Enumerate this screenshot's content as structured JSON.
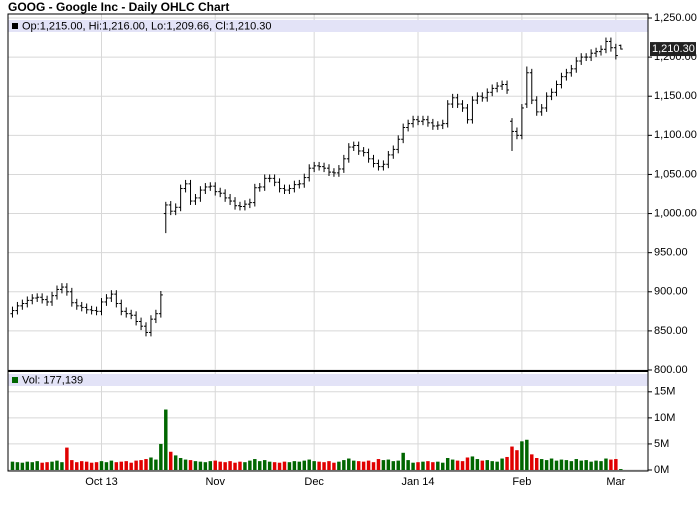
{
  "chart_data": {
    "type": "ohlc",
    "title": "GOOG - Google Inc - Daily OHLC Chart",
    "legend_text": "Op:1,215.00, Hi:1,216.00, Lo:1,209.66, Cl:1,210.30",
    "last_label": "1,210.30",
    "color": "#000000",
    "grid": true,
    "categories": [
      null,
      null,
      null,
      null,
      null,
      null,
      null,
      null,
      null,
      null,
      null,
      null,
      null,
      null,
      null,
      null,
      null,
      null,
      "Oct 13",
      null,
      null,
      null,
      null,
      null,
      null,
      null,
      null,
      null,
      null,
      null,
      null,
      null,
      null,
      null,
      null,
      null,
      null,
      null,
      null,
      null,
      null,
      "Nov",
      null,
      null,
      null,
      null,
      null,
      null,
      null,
      null,
      null,
      null,
      null,
      null,
      null,
      null,
      null,
      null,
      null,
      null,
      null,
      "Dec",
      null,
      null,
      null,
      null,
      null,
      null,
      null,
      null,
      null,
      null,
      null,
      null,
      null,
      null,
      null,
      null,
      null,
      null,
      null,
      null,
      "Jan 14",
      null,
      null,
      null,
      null,
      null,
      null,
      null,
      null,
      null,
      null,
      null,
      null,
      null,
      null,
      null,
      null,
      null,
      null,
      null,
      null,
      "Feb",
      null,
      null,
      null,
      null,
      null,
      null,
      null,
      null,
      null,
      null,
      null,
      null,
      null,
      null,
      null,
      null,
      null,
      null,
      "Mar",
      null
    ],
    "open": [
      872,
      876,
      882,
      885,
      889,
      892,
      893,
      890,
      887,
      895,
      903,
      906,
      900,
      886,
      882,
      880,
      877,
      876,
      875,
      887,
      892,
      897,
      885,
      875,
      872,
      870,
      862,
      856,
      848,
      865,
      872,
      1000,
      1011,
      1003,
      1008,
      1032,
      1038,
      1016,
      1020,
      1030,
      1034,
      1035,
      1028,
      1026,
      1020,
      1016,
      1010,
      1009,
      1012,
      1014,
      1033,
      1034,
      1045,
      1045,
      1040,
      1032,
      1030,
      1032,
      1037,
      1038,
      1046,
      1058,
      1061,
      1060,
      1058,
      1053,
      1052,
      1057,
      1070,
      1085,
      1087,
      1080,
      1078,
      1070,
      1064,
      1060,
      1063,
      1075,
      1082,
      1095,
      1110,
      1115,
      1120,
      1118,
      1120,
      1116,
      1112,
      1113,
      1115,
      1140,
      1148,
      1140,
      1135,
      1120,
      1145,
      1150,
      1148,
      1155,
      1160,
      1163,
      1165,
      1118,
      1105,
      1100,
      1140,
      1180,
      1145,
      1130,
      1135,
      1150,
      1155,
      1165,
      1175,
      1180,
      1185,
      1195,
      1200,
      1200,
      1205,
      1207,
      1210,
      1220,
      1212,
      1215
    ],
    "high": [
      881,
      887,
      890,
      894,
      897,
      898,
      898,
      895,
      900,
      908,
      911,
      911,
      905,
      891,
      887,
      885,
      882,
      881,
      892,
      897,
      902,
      902,
      890,
      880,
      877,
      875,
      867,
      861,
      870,
      877,
      901,
      1015,
      1016,
      1013,
      1037,
      1043,
      1043,
      1025,
      1035,
      1039,
      1040,
      1040,
      1033,
      1031,
      1025,
      1021,
      1015,
      1017,
      1019,
      1038,
      1039,
      1050,
      1050,
      1050,
      1045,
      1037,
      1037,
      1042,
      1043,
      1051,
      1063,
      1066,
      1066,
      1065,
      1063,
      1058,
      1062,
      1075,
      1090,
      1092,
      1092,
      1085,
      1083,
      1075,
      1069,
      1068,
      1080,
      1087,
      1100,
      1115,
      1120,
      1125,
      1125,
      1125,
      1125,
      1121,
      1118,
      1120,
      1145,
      1153,
      1153,
      1145,
      1140,
      1150,
      1155,
      1155,
      1160,
      1165,
      1168,
      1170,
      1170,
      1122,
      1110,
      1140,
      1188,
      1185,
      1150,
      1140,
      1155,
      1160,
      1170,
      1180,
      1185,
      1190,
      1200,
      1205,
      1205,
      1210,
      1212,
      1215,
      1225,
      1225,
      1217,
      1216
    ],
    "low": [
      867,
      871,
      877,
      880,
      884,
      887,
      885,
      882,
      882,
      890,
      898,
      895,
      881,
      877,
      875,
      872,
      871,
      870,
      870,
      882,
      887,
      880,
      870,
      867,
      865,
      857,
      851,
      843,
      843,
      860,
      867,
      975,
      998,
      998,
      1003,
      1027,
      1011,
      1011,
      1015,
      1025,
      1029,
      1023,
      1021,
      1015,
      1011,
      1005,
      1004,
      1004,
      1007,
      1009,
      1028,
      1029,
      1040,
      1035,
      1027,
      1025,
      1025,
      1027,
      1032,
      1033,
      1041,
      1053,
      1055,
      1053,
      1048,
      1047,
      1047,
      1052,
      1065,
      1080,
      1075,
      1073,
      1065,
      1059,
      1055,
      1055,
      1058,
      1070,
      1077,
      1090,
      1105,
      1110,
      1113,
      1113,
      1111,
      1107,
      1107,
      1108,
      1110,
      1135,
      1135,
      1130,
      1115,
      1115,
      1140,
      1143,
      1143,
      1150,
      1155,
      1158,
      1153,
      1080,
      1095,
      1095,
      1135,
      1140,
      1125,
      1125,
      1130,
      1145,
      1150,
      1160,
      1170,
      1175,
      1180,
      1190,
      1195,
      1195,
      1200,
      1202,
      1205,
      1207,
      1197,
      1209.66
    ],
    "close": [
      876,
      882,
      885,
      889,
      892,
      893,
      890,
      887,
      895,
      903,
      906,
      900,
      886,
      882,
      880,
      877,
      876,
      875,
      887,
      892,
      897,
      885,
      875,
      872,
      870,
      862,
      856,
      848,
      865,
      872,
      896,
      1011,
      1003,
      1008,
      1032,
      1038,
      1016,
      1020,
      1030,
      1034,
      1035,
      1028,
      1026,
      1020,
      1016,
      1010,
      1009,
      1012,
      1014,
      1033,
      1034,
      1045,
      1045,
      1040,
      1032,
      1030,
      1032,
      1037,
      1038,
      1046,
      1058,
      1061,
      1060,
      1058,
      1053,
      1052,
      1057,
      1070,
      1085,
      1087,
      1080,
      1078,
      1070,
      1064,
      1060,
      1063,
      1075,
      1082,
      1095,
      1110,
      1115,
      1120,
      1118,
      1120,
      1116,
      1112,
      1113,
      1115,
      1140,
      1148,
      1140,
      1135,
      1120,
      1145,
      1150,
      1148,
      1155,
      1160,
      1163,
      1165,
      1158,
      1105,
      1100,
      1135,
      1180,
      1145,
      1130,
      1135,
      1150,
      1155,
      1165,
      1175,
      1180,
      1185,
      1195,
      1200,
      1200,
      1205,
      1207,
      1210,
      1220,
      1212,
      1202,
      1210.3
    ],
    "ylim": [
      800,
      1250
    ],
    "yticks": [
      {
        "value": 800,
        "label": "800.00"
      },
      {
        "value": 850,
        "label": "850.00"
      },
      {
        "value": 900,
        "label": "900.00"
      },
      {
        "value": 950,
        "label": "950.00"
      },
      {
        "value": 1000,
        "label": "1,000.00"
      },
      {
        "value": 1050,
        "label": "1,050.00"
      },
      {
        "value": 1100,
        "label": "1,100.00"
      },
      {
        "value": 1150,
        "label": "1,150.00"
      },
      {
        "value": 1200,
        "label": "1,200.00"
      },
      {
        "value": 1250,
        "label": "1,250.00"
      }
    ],
    "volume": {
      "legend": "Vol: 177,139",
      "up_color": "#006600",
      "down_color": "#e00000",
      "ylim": [
        0,
        18.8
      ],
      "yticks": [
        {
          "value": 0,
          "label": "0M"
        },
        {
          "value": 5,
          "label": "5M"
        },
        {
          "value": 10,
          "label": "10M"
        },
        {
          "value": 15,
          "label": "15M"
        }
      ],
      "values": [
        1.6,
        1.5,
        1.4,
        1.6,
        1.5,
        1.7,
        1.4,
        1.5,
        1.6,
        1.8,
        1.5,
        4.3,
        1.9,
        1.5,
        1.7,
        1.6,
        1.4,
        1.5,
        1.7,
        1.5,
        1.8,
        1.5,
        1.6,
        1.7,
        1.4,
        1.8,
        1.9,
        2.1,
        2.4,
        2.0,
        5.0,
        11.6,
        3.5,
        2.8,
        2.3,
        2.0,
        1.9,
        1.7,
        1.6,
        1.5,
        1.7,
        1.8,
        1.6,
        1.5,
        1.7,
        1.4,
        1.6,
        1.5,
        1.8,
        2.1,
        1.7,
        1.9,
        1.6,
        1.5,
        1.4,
        1.6,
        1.5,
        1.7,
        1.6,
        1.8,
        2.0,
        1.7,
        1.6,
        1.5,
        1.7,
        1.4,
        1.6,
        1.9,
        2.2,
        1.8,
        1.7,
        1.6,
        1.8,
        1.5,
        2.1,
        1.9,
        2.0,
        1.7,
        1.8,
        3.3,
        1.9,
        1.4,
        1.5,
        1.6,
        1.7,
        1.5,
        1.6,
        1.4,
        2.3,
        2.0,
        1.8,
        1.7,
        2.4,
        2.6,
        2.1,
        1.8,
        1.9,
        1.7,
        1.6,
        2.2,
        2.5,
        4.5,
        3.8,
        5.5,
        5.8,
        3.0,
        2.3,
        2.1,
        1.9,
        2.2,
        1.8,
        2.0,
        1.9,
        1.7,
        2.1,
        1.8,
        1.9,
        1.6,
        1.8,
        1.7,
        2.2,
        2.0,
        2.1,
        0.18
      ]
    }
  }
}
